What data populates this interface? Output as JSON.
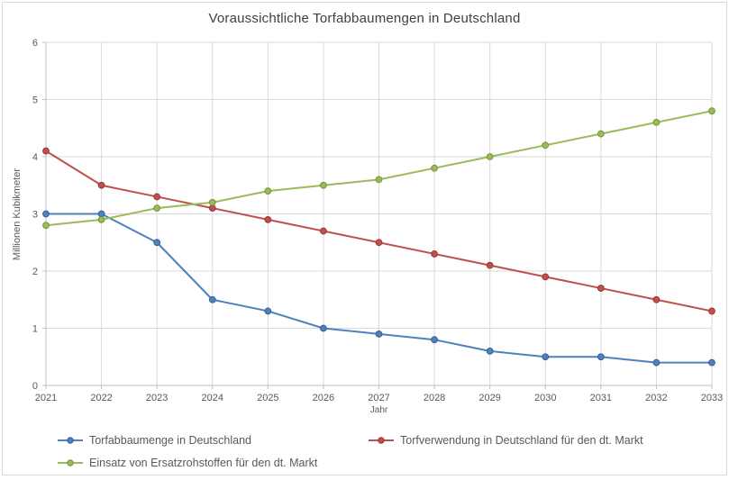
{
  "window": {
    "background": "#ffffff",
    "border_color": "#d9d9d9"
  },
  "chart_data": {
    "type": "line",
    "title": "Voraussichtliche Torfabbaumengen in Deutschland",
    "xlabel": "Jahr",
    "ylabel": "Millionen Kubikmeter",
    "x_categories": [
      "2021",
      "2022",
      "2023",
      "2024",
      "2025",
      "2026",
      "2027",
      "2028",
      "2029",
      "2030",
      "2031",
      "2032",
      "2033"
    ],
    "y_ticks": [
      0,
      1,
      2,
      3,
      4,
      5,
      6
    ],
    "ylim": [
      0,
      6
    ],
    "grid": true,
    "legend_position": "bottom",
    "series": [
      {
        "name": "Torfabbaumenge in Deutschland",
        "color": "#4F81BD",
        "marker_stroke": "#35618E",
        "values": [
          3.0,
          3.0,
          2.5,
          1.5,
          1.3,
          1.0,
          0.9,
          0.8,
          0.6,
          0.5,
          0.5,
          0.4,
          0.4
        ]
      },
      {
        "name": "Torfverwendung in Deutschland für den dt. Markt",
        "color": "#C0504D",
        "marker_stroke": "#953734",
        "values": [
          4.1,
          3.5,
          3.3,
          3.1,
          2.9,
          2.7,
          2.5,
          2.3,
          2.1,
          1.9,
          1.7,
          1.5,
          1.3
        ]
      },
      {
        "name": "Einsatz von Ersatzrohstoffen für den dt. Markt",
        "color": "#9BBB59",
        "marker_stroke": "#77933C",
        "values": [
          2.8,
          2.9,
          3.1,
          3.2,
          3.4,
          3.5,
          3.6,
          3.8,
          4.0,
          4.2,
          4.4,
          4.6,
          4.8
        ]
      }
    ],
    "styles": {
      "grid_color": "#d9d9d9",
      "axis_color": "#bfbfbf",
      "tick_label_color": "#595959",
      "title_color": "#404040",
      "legend_text_color": "#595959"
    }
  }
}
